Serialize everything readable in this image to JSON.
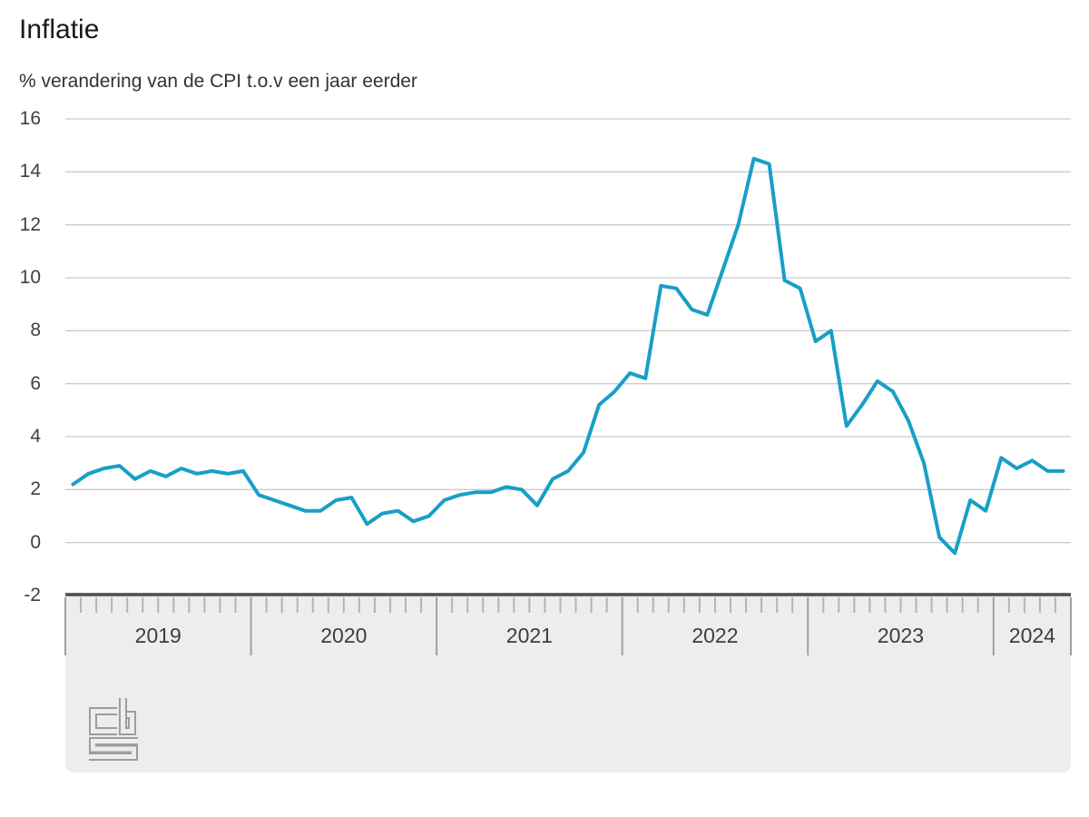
{
  "header": {
    "title": "Inflatie",
    "subtitle": "% verandering van de CPI t.o.v een jaar eerder"
  },
  "chart_data": {
    "type": "line",
    "title": "Inflatie",
    "ylabel": "% verandering van de CPI t.o.v een jaar eerder",
    "x_period": {
      "start": "2019-01",
      "end": "2024-05",
      "frequency": "monthly"
    },
    "year_labels": [
      "2019",
      "2020",
      "2021",
      "2022",
      "2023",
      "2024"
    ],
    "values": [
      2.2,
      2.6,
      2.8,
      2.9,
      2.4,
      2.7,
      2.5,
      2.8,
      2.6,
      2.7,
      2.6,
      2.7,
      1.8,
      1.6,
      1.4,
      1.2,
      1.2,
      1.6,
      1.7,
      0.7,
      1.1,
      1.2,
      0.8,
      1.0,
      1.6,
      1.8,
      1.9,
      1.9,
      2.1,
      2.0,
      1.4,
      2.4,
      2.7,
      3.4,
      5.2,
      5.7,
      6.4,
      6.2,
      9.7,
      9.6,
      8.8,
      8.6,
      10.3,
      12.0,
      14.5,
      14.3,
      9.9,
      9.6,
      7.6,
      8.0,
      4.4,
      5.2,
      6.1,
      5.7,
      4.6,
      3.0,
      0.2,
      -0.4,
      1.6,
      1.2,
      3.2,
      2.8,
      3.1,
      2.7,
      2.7
    ],
    "y_ticks": [
      16,
      14,
      12,
      10,
      8,
      6,
      4,
      2,
      0,
      -2
    ],
    "ylim": [
      -2,
      16
    ],
    "grid": "horizontal",
    "legend": "none",
    "line_color": "#189fc6"
  },
  "branding": {
    "logo": "cbs-logo"
  },
  "colors": {
    "line": "#189fc6",
    "band_background": "#ededed",
    "axis_line": "#4f4f4f",
    "gridline": "#cbcbcb",
    "month_tick": "#b4b4b4",
    "year_tick": "#a0a0a0",
    "label_text": "#404040",
    "title_text": "#1a1a1a",
    "logo": "#9d9d9d"
  }
}
